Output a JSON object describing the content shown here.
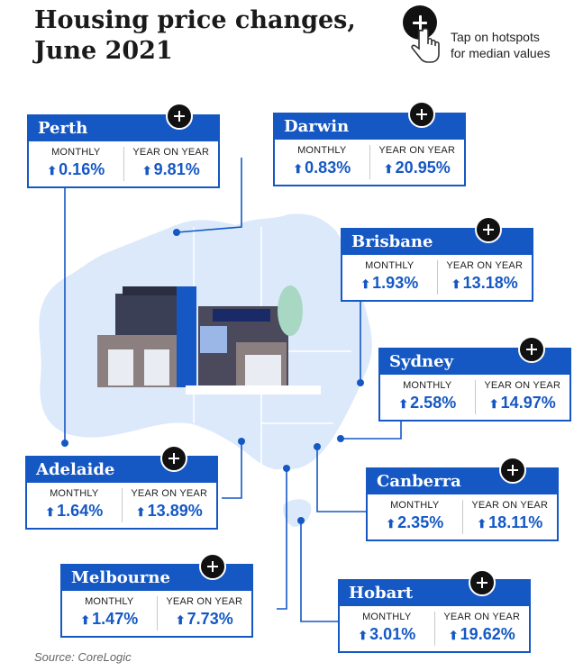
{
  "title": "Housing price changes,",
  "subtitle": "June 2021",
  "hint": {
    "line1": "Tap on hotspots",
    "line2": "for median values",
    "icon": "plus-circle-icon"
  },
  "labels": {
    "monthly": "MONTHLY",
    "yoy": "YEAR ON YEAR"
  },
  "arrow": "⬆",
  "colors": {
    "accent": "#1558c4",
    "map": "#dbe9fb"
  },
  "cities": [
    {
      "name": "Perth",
      "monthly": "0.16%",
      "yoy": "9.81%"
    },
    {
      "name": "Darwin",
      "monthly": "0.83%",
      "yoy": "20.95%"
    },
    {
      "name": "Brisbane",
      "monthly": "1.93%",
      "yoy": "13.18%"
    },
    {
      "name": "Sydney",
      "monthly": "2.58%",
      "yoy": "14.97%"
    },
    {
      "name": "Adelaide",
      "monthly": "1.64%",
      "yoy": "13.89%"
    },
    {
      "name": "Canberra",
      "monthly": "2.35%",
      "yoy": "18.11%"
    },
    {
      "name": "Melbourne",
      "monthly": "1.47%",
      "yoy": "7.73%"
    },
    {
      "name": "Hobart",
      "monthly": "3.01%",
      "yoy": "19.62%"
    }
  ],
  "source": "Source:  CoreLogic"
}
